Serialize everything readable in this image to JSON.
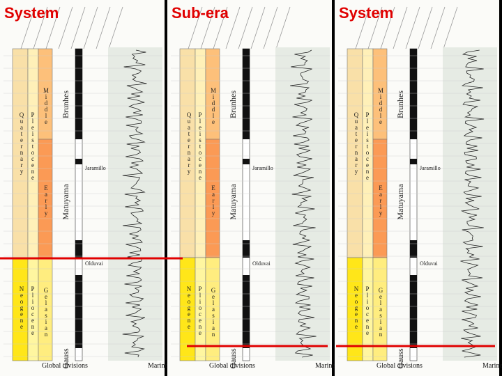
{
  "panels": [
    {
      "title": "System"
    },
    {
      "title": "Sub-era"
    },
    {
      "title": "System"
    }
  ],
  "scale": {
    "system": [
      "Quaternary",
      "Neogene"
    ],
    "series": [
      "Pleistocene",
      "Pliocene"
    ],
    "stages": [
      "Middle",
      "Early",
      "Gelasian"
    ],
    "chrons": [
      "Brunhes",
      "Matuyama",
      "Gauss"
    ],
    "events": [
      "Jaramillo",
      "Olduvai"
    ],
    "footer": "Global divisions",
    "marine": "Marine"
  }
}
